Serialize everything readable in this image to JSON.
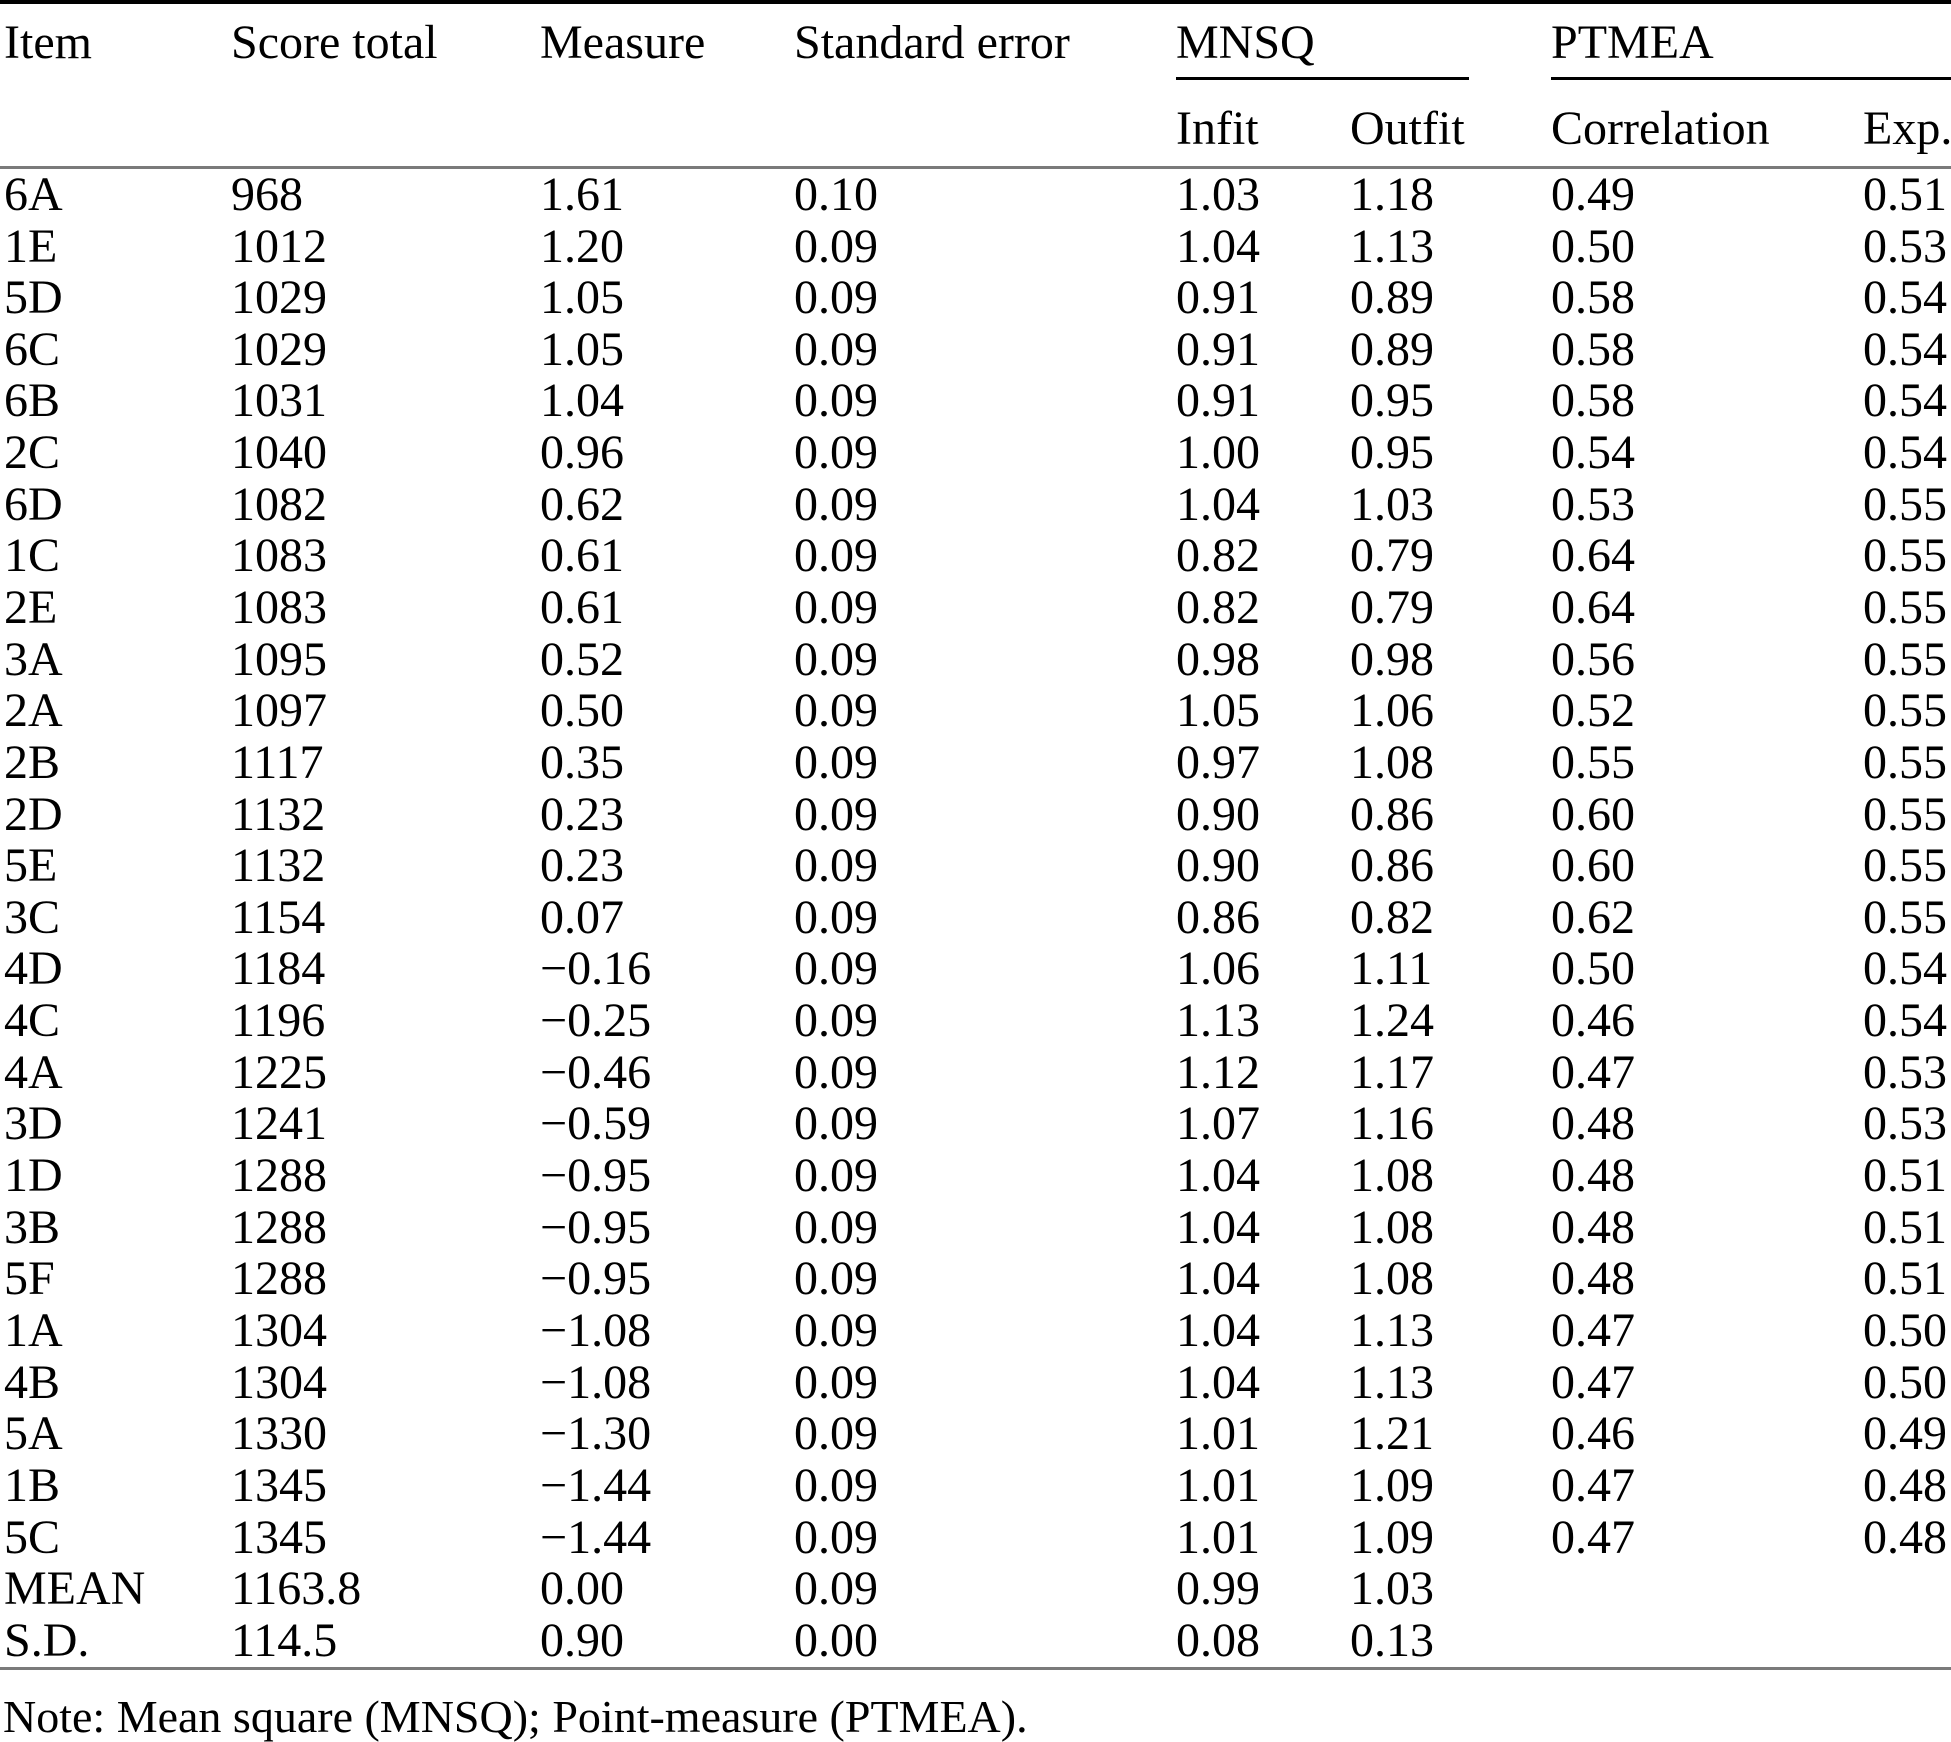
{
  "table": {
    "headers": {
      "item": "Item",
      "score_total": "Score total",
      "measure": "Measure",
      "standard_error": "Standard error",
      "mnsq": "MNSQ",
      "ptmea": "PTMEA",
      "infit": "Infit",
      "outfit": "Outfit",
      "correlation": "Correlation",
      "exp": "Exp."
    },
    "rows": [
      [
        "6A",
        "968",
        "1.61",
        "0.10",
        "1.03",
        "1.18",
        "0.49",
        "0.51"
      ],
      [
        "1E",
        "1012",
        "1.20",
        "0.09",
        "1.04",
        "1.13",
        "0.50",
        "0.53"
      ],
      [
        "5D",
        "1029",
        "1.05",
        "0.09",
        "0.91",
        "0.89",
        "0.58",
        "0.54"
      ],
      [
        "6C",
        "1029",
        "1.05",
        "0.09",
        "0.91",
        "0.89",
        "0.58",
        "0.54"
      ],
      [
        "6B",
        "1031",
        "1.04",
        "0.09",
        "0.91",
        "0.95",
        "0.58",
        "0.54"
      ],
      [
        "2C",
        "1040",
        "0.96",
        "0.09",
        "1.00",
        "0.95",
        "0.54",
        "0.54"
      ],
      [
        "6D",
        "1082",
        "0.62",
        "0.09",
        "1.04",
        "1.03",
        "0.53",
        "0.55"
      ],
      [
        "1C",
        "1083",
        "0.61",
        "0.09",
        "0.82",
        "0.79",
        "0.64",
        "0.55"
      ],
      [
        "2E",
        "1083",
        "0.61",
        "0.09",
        "0.82",
        "0.79",
        "0.64",
        "0.55"
      ],
      [
        "3A",
        "1095",
        "0.52",
        "0.09",
        "0.98",
        "0.98",
        "0.56",
        "0.55"
      ],
      [
        "2A",
        "1097",
        "0.50",
        "0.09",
        "1.05",
        "1.06",
        "0.52",
        "0.55"
      ],
      [
        "2B",
        "1117",
        "0.35",
        "0.09",
        "0.97",
        "1.08",
        "0.55",
        "0.55"
      ],
      [
        "2D",
        "1132",
        "0.23",
        "0.09",
        "0.90",
        "0.86",
        "0.60",
        "0.55"
      ],
      [
        "5E",
        "1132",
        "0.23",
        "0.09",
        "0.90",
        "0.86",
        "0.60",
        "0.55"
      ],
      [
        "3C",
        "1154",
        "0.07",
        "0.09",
        "0.86",
        "0.82",
        "0.62",
        "0.55"
      ],
      [
        "4D",
        "1184",
        "−0.16",
        "0.09",
        "1.06",
        "1.11",
        "0.50",
        "0.54"
      ],
      [
        "4C",
        "1196",
        "−0.25",
        "0.09",
        "1.13",
        "1.24",
        "0.46",
        "0.54"
      ],
      [
        "4A",
        "1225",
        "−0.46",
        "0.09",
        "1.12",
        "1.17",
        "0.47",
        "0.53"
      ],
      [
        "3D",
        "1241",
        "−0.59",
        "0.09",
        "1.07",
        "1.16",
        "0.48",
        "0.53"
      ],
      [
        "1D",
        "1288",
        "−0.95",
        "0.09",
        "1.04",
        "1.08",
        "0.48",
        "0.51"
      ],
      [
        "3B",
        "1288",
        "−0.95",
        "0.09",
        "1.04",
        "1.08",
        "0.48",
        "0.51"
      ],
      [
        "5F",
        "1288",
        "−0.95",
        "0.09",
        "1.04",
        "1.08",
        "0.48",
        "0.51"
      ],
      [
        "1A",
        "1304",
        "−1.08",
        "0.09",
        "1.04",
        "1.13",
        "0.47",
        "0.50"
      ],
      [
        "4B",
        "1304",
        "−1.08",
        "0.09",
        "1.04",
        "1.13",
        "0.47",
        "0.50"
      ],
      [
        "5A",
        "1330",
        "−1.30",
        "0.09",
        "1.01",
        "1.21",
        "0.46",
        "0.49"
      ],
      [
        "1B",
        "1345",
        "−1.44",
        "0.09",
        "1.01",
        "1.09",
        "0.47",
        "0.48"
      ],
      [
        "5C",
        "1345",
        "−1.44",
        "0.09",
        "1.01",
        "1.09",
        "0.47",
        "0.48"
      ],
      [
        "MEAN",
        "1163.8",
        "0.00",
        "0.09",
        "0.99",
        "1.03",
        "",
        ""
      ],
      [
        "S.D.",
        "114.5",
        "0.90",
        "0.00",
        "0.08",
        "0.13",
        "",
        ""
      ]
    ]
  },
  "note": "Note: Mean square (MNSQ); Point-measure (PTMEA)."
}
